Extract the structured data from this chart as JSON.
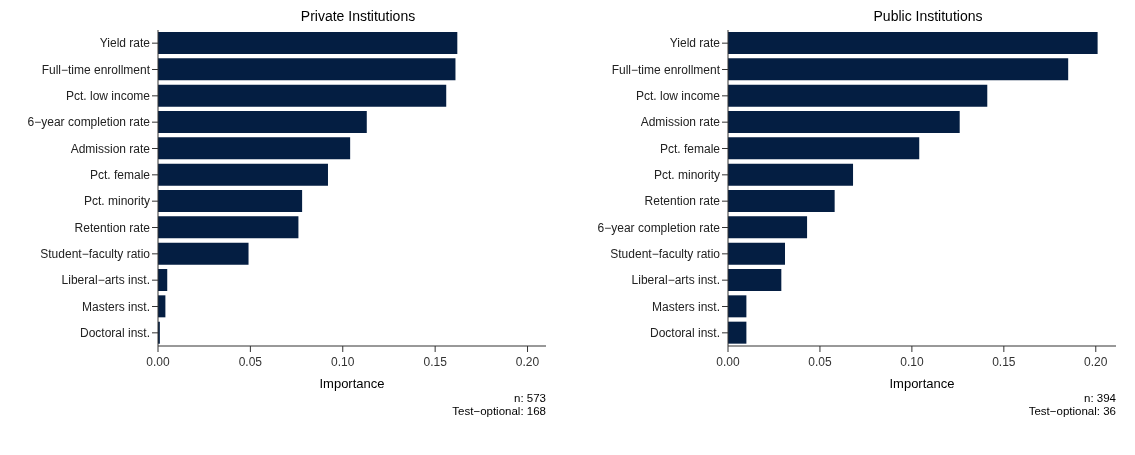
{
  "chart_data": [
    {
      "type": "bar",
      "orientation": "horizontal",
      "title": "Private Institutions",
      "xlabel": "Importance",
      "categories": [
        "Yield rate",
        "Full−time enrollment",
        "Pct. low income",
        "6−year completion rate",
        "Admission rate",
        "Pct. female",
        "Pct. minority",
        "Retention rate",
        "Student−faculty ratio",
        "Liberal−arts inst.",
        "Masters inst.",
        "Doctoral inst."
      ],
      "values": [
        0.162,
        0.161,
        0.156,
        0.113,
        0.104,
        0.092,
        0.078,
        0.076,
        0.049,
        0.005,
        0.004,
        0.001
      ],
      "color": "#041e42",
      "xlim": [
        0,
        0.21
      ],
      "xticks": [
        {
          "value": 0,
          "label": "0.00"
        },
        {
          "value": 0.05,
          "label": "0.05"
        },
        {
          "value": 0.1,
          "label": "0.10"
        },
        {
          "value": 0.15,
          "label": "0.15"
        },
        {
          "value": 0.2,
          "label": "0.20"
        }
      ],
      "grid": false,
      "annotations": [
        "n: 573",
        "Test−optional: 168"
      ]
    },
    {
      "type": "bar",
      "orientation": "horizontal",
      "title": "Public Institutions",
      "xlabel": "Importance",
      "categories": [
        "Yield rate",
        "Full−time enrollment",
        "Pct. low income",
        "Admission rate",
        "Pct. female",
        "Pct. minority",
        "Retention rate",
        "6−year completion rate",
        "Student−faculty ratio",
        "Liberal−arts inst.",
        "Masters inst.",
        "Doctoral inst."
      ],
      "values": [
        0.201,
        0.185,
        0.141,
        0.126,
        0.104,
        0.068,
        0.058,
        0.043,
        0.031,
        0.029,
        0.01,
        0.01
      ],
      "color": "#041e42",
      "xlim": [
        0,
        0.211
      ],
      "xticks": [
        {
          "value": 0,
          "label": "0.00"
        },
        {
          "value": 0.05,
          "label": "0.05"
        },
        {
          "value": 0.1,
          "label": "0.10"
        },
        {
          "value": 0.15,
          "label": "0.15"
        },
        {
          "value": 0.2,
          "label": "0.20"
        }
      ],
      "grid": false,
      "annotations": [
        "n: 394",
        "Test−optional: 36"
      ]
    }
  ]
}
